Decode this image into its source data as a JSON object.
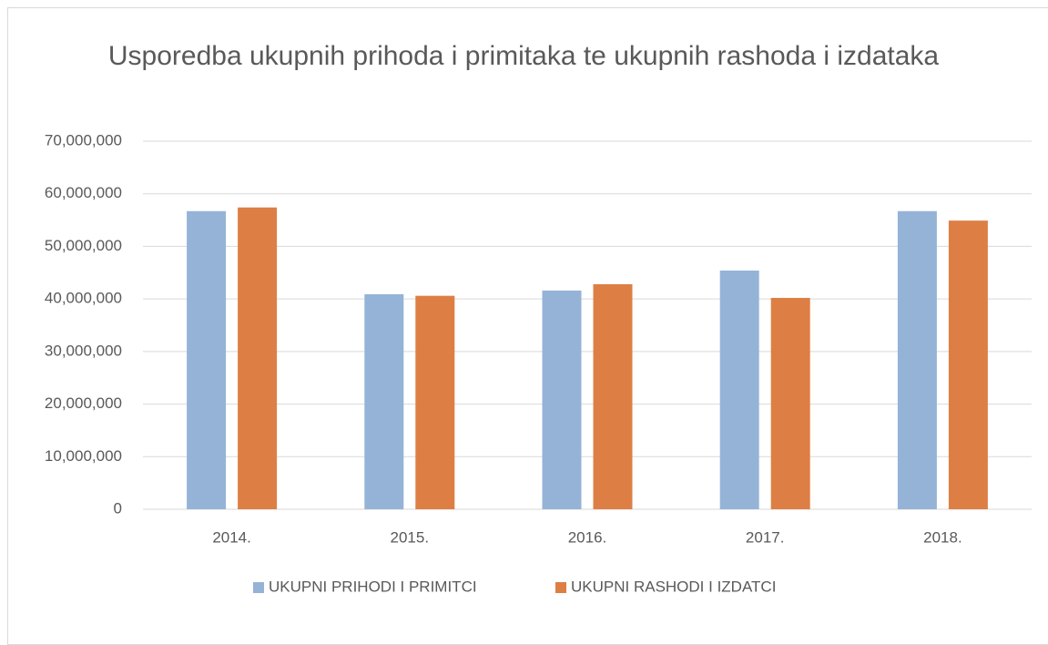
{
  "chart_data": {
    "type": "bar",
    "title": "Usporedba ukupnih prihoda i primitaka te ukupnih rashoda i izdataka",
    "categories": [
      "2014.",
      "2015.",
      "2016.",
      "2017.",
      "2018."
    ],
    "series": [
      {
        "name": "UKUPNI PRIHODI I PRIMITCI",
        "color": "#95b3d7",
        "values": [
          56700000,
          40900000,
          41600000,
          45400000,
          56700000
        ]
      },
      {
        "name": "UKUPNI RASHODI I IZDATCI",
        "color": "#dd7f45",
        "values": [
          57400000,
          40600000,
          42800000,
          40200000,
          54900000
        ]
      }
    ],
    "ylim": [
      0,
      70000000
    ],
    "yticks": [
      0,
      {
        "value": 10000000,
        "label": "10,000,000"
      },
      {
        "value": 20000000,
        "label": "20,000,000"
      },
      {
        "value": 30000000,
        "label": "30,000,000"
      },
      {
        "value": 40000000,
        "label": "40,000,000"
      },
      {
        "value": 50000000,
        "label": "50,000,000"
      },
      {
        "value": 60000000,
        "label": "60,000,000"
      },
      {
        "value": 70000000,
        "label": "70,000,000"
      }
    ],
    "grid": true,
    "legend": "bottom"
  }
}
